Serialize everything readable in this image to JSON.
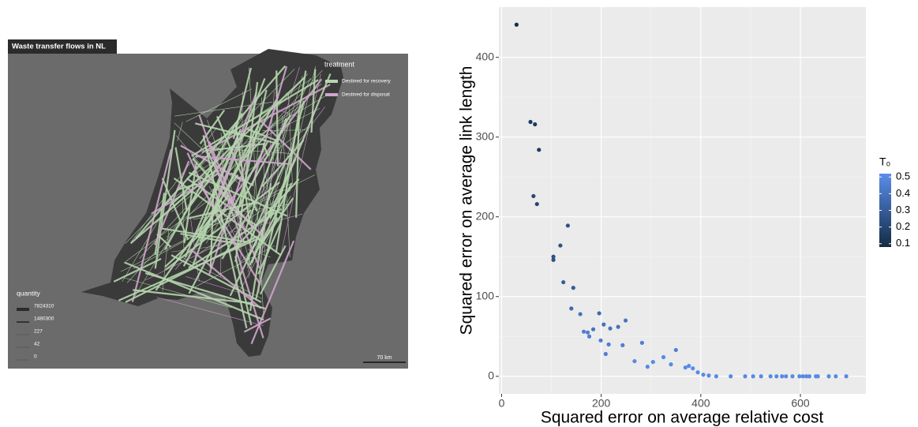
{
  "chart_data": [
    {
      "type": "map",
      "title": "Waste transfer flows in NL",
      "color_legend": {
        "title": "treatment",
        "items": [
          {
            "label": "Destined for recovery",
            "color": "#b6d6ae"
          },
          {
            "label": "Destined for disposal",
            "color": "#cfa6cc"
          }
        ]
      },
      "size_legend": {
        "title": "quantity",
        "values": [
          7824310,
          1480300,
          227,
          42,
          0
        ]
      },
      "scale_bar": "70 km"
    },
    {
      "type": "scatter",
      "x_label": "Squared error on average relative cost",
      "y_label": "Squared error on average link length",
      "x": [
        30,
        58,
        67,
        75,
        64,
        71,
        133,
        118,
        104,
        104,
        124,
        144,
        140,
        158,
        196,
        205,
        184,
        165,
        173,
        176,
        199,
        218,
        234,
        249,
        215,
        243,
        282,
        209,
        267,
        293,
        304,
        325,
        350,
        340,
        369,
        376,
        384,
        394,
        405,
        416,
        431,
        460,
        489,
        505,
        521,
        540,
        552,
        563,
        571,
        584,
        598,
        605,
        612,
        618,
        631,
        635,
        657,
        671,
        692
      ],
      "series": [
        {
          "values": [
            441,
            319,
            316,
            284,
            226,
            216,
            189,
            164,
            150,
            146,
            118,
            111,
            85,
            78,
            79,
            65,
            59,
            56,
            55,
            50,
            45,
            60,
            62,
            70,
            40,
            39,
            42,
            28,
            19,
            12,
            18,
            24,
            33,
            15,
            11,
            13,
            10,
            5,
            2,
            1,
            0,
            0,
            0,
            0,
            0,
            0,
            0,
            0,
            0,
            0,
            0,
            0,
            0,
            0,
            0,
            0,
            0,
            0,
            0
          ],
          "t0": [
            0.1,
            0.15,
            0.15,
            0.15,
            0.2,
            0.2,
            0.25,
            0.25,
            0.25,
            0.25,
            0.3,
            0.3,
            0.35,
            0.4,
            0.35,
            0.4,
            0.4,
            0.45,
            0.45,
            0.45,
            0.45,
            0.4,
            0.4,
            0.4,
            0.45,
            0.45,
            0.45,
            0.45,
            0.5,
            0.5,
            0.5,
            0.5,
            0.45,
            0.5,
            0.5,
            0.5,
            0.5,
            0.5,
            0.5,
            0.5,
            0.5,
            0.5,
            0.5,
            0.5,
            0.5,
            0.5,
            0.5,
            0.5,
            0.5,
            0.5,
            0.5,
            0.5,
            0.5,
            0.5,
            0.5,
            0.5,
            0.5,
            0.5,
            0.5
          ]
        }
      ],
      "xlim": [
        -5.5,
        731.5
      ],
      "xticks": [
        0,
        200,
        400,
        600
      ],
      "ylim": [
        -22,
        463
      ],
      "yticks": [
        0,
        100,
        200,
        300,
        400
      ],
      "grid": true,
      "colorbar": {
        "title": "T₀",
        "lim": [
          0.08,
          0.52
        ],
        "ticks": [
          0.1,
          0.2,
          0.3,
          0.4,
          0.5
        ],
        "low": "#132B43",
        "high": "#5A8EEC"
      }
    }
  ]
}
